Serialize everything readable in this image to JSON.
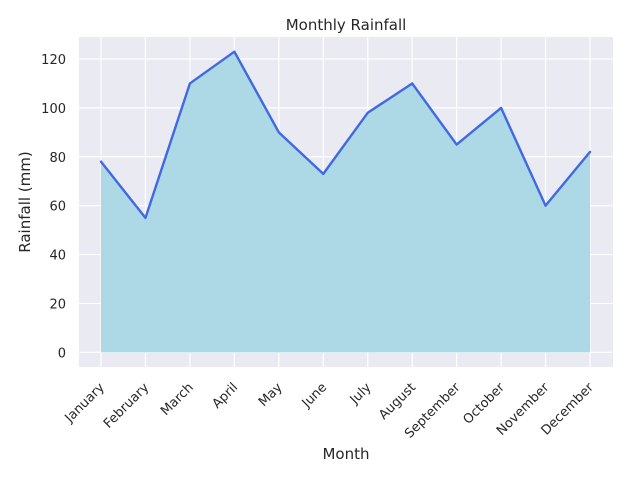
{
  "chart_data": {
    "type": "area",
    "title": "Monthly Rainfall",
    "xlabel": "Month",
    "ylabel": "Rainfall (mm)",
    "categories": [
      "January",
      "February",
      "March",
      "April",
      "May",
      "June",
      "July",
      "August",
      "September",
      "October",
      "November",
      "December"
    ],
    "series": [
      {
        "values": [
          78,
          55,
          110,
          123,
          90,
          73,
          98,
          110,
          85,
          100,
          60,
          82
        ]
      }
    ],
    "ylim": [
      -6,
      129
    ],
    "yticks": [
      0,
      20,
      40,
      60,
      80,
      100,
      120
    ],
    "grid": true,
    "colors": {
      "background": "#eaeaf2",
      "grid": "#ffffff",
      "fill": "#add8e6",
      "line": "#4169e1"
    }
  }
}
